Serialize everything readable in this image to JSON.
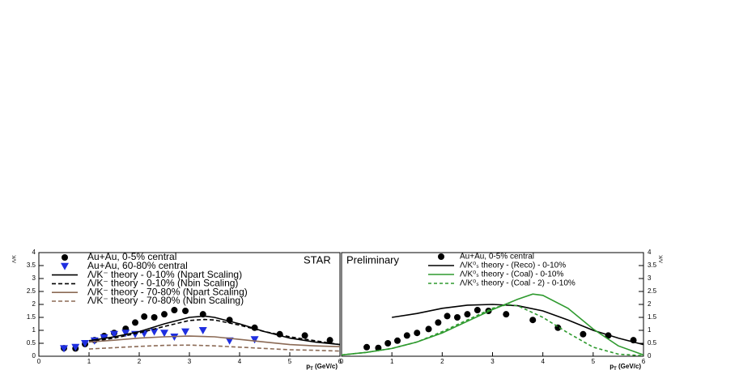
{
  "chart_data": [
    {
      "type": "scatter",
      "label": "STAR",
      "ylabel": "Λ/K",
      "xlabel": [
        "p",
        "T",
        " (GeV/c)"
      ],
      "xlim": [
        0,
        6
      ],
      "xticks": [
        0,
        1,
        2,
        3,
        4,
        5,
        6
      ],
      "ylim": [
        0,
        4
      ],
      "yticks": [
        0,
        0.5,
        1,
        1.5,
        2,
        2.5,
        3,
        3.5,
        4
      ],
      "ytick_side": "left",
      "series": [
        {
          "name": "Au+Au, 0-5% central",
          "mark": "circle",
          "color": "#000000",
          "x": [
            0.5,
            0.73,
            0.92,
            1.11,
            1.3,
            1.5,
            1.73,
            1.92,
            2.1,
            2.3,
            2.5,
            2.7,
            2.92,
            3.27,
            3.8,
            4.3,
            4.8,
            5.3,
            5.8
          ],
          "values": [
            0.31,
            0.3,
            0.47,
            0.62,
            0.78,
            0.9,
            1.06,
            1.3,
            1.53,
            1.5,
            1.62,
            1.78,
            1.75,
            1.62,
            1.4,
            1.1,
            0.85,
            0.8,
            0.62
          ]
        },
        {
          "name": "Au+Au, 60-80% central",
          "mark": "triangle",
          "color": "#1f2fe0",
          "x": [
            0.5,
            0.73,
            0.92,
            1.11,
            1.3,
            1.5,
            1.73,
            1.92,
            2.1,
            2.3,
            2.5,
            2.7,
            2.92,
            3.27,
            3.8,
            4.3
          ],
          "values": [
            0.3,
            0.35,
            0.5,
            0.6,
            0.72,
            0.85,
            0.9,
            0.85,
            0.88,
            0.95,
            0.9,
            0.75,
            0.95,
            1.0,
            0.6,
            0.65
          ]
        },
        {
          "name": "Λ/K⁻ theory - 0-10% (Npart Scaling)",
          "mark": "line",
          "dash": "none",
          "color": "#000000",
          "x": [
            1,
            1.5,
            2,
            2.5,
            3,
            3.3,
            3.5,
            4,
            4.5,
            5,
            5.5,
            6
          ],
          "values": [
            0.6,
            0.75,
            0.95,
            1.25,
            1.5,
            1.55,
            1.5,
            1.25,
            0.95,
            0.7,
            0.55,
            0.45
          ]
        },
        {
          "name": "Λ/K⁻ theory - 0-10% (Nbin Scaling)",
          "mark": "line",
          "dash": "5 3",
          "color": "#000000",
          "x": [
            1,
            1.5,
            2,
            2.5,
            3,
            3.3,
            3.5,
            4,
            4.5,
            5,
            5.5,
            6
          ],
          "values": [
            0.55,
            0.7,
            0.9,
            1.15,
            1.38,
            1.42,
            1.4,
            1.2,
            0.95,
            0.75,
            0.6,
            0.45
          ]
        },
        {
          "name": "Λ/K⁻ theory - 70-80% (Npart Scaling)",
          "mark": "line",
          "dash": "none",
          "color": "#8b6a55",
          "x": [
            1,
            1.5,
            2,
            2.5,
            3,
            3.5,
            4,
            4.5,
            5,
            5.5,
            6
          ],
          "values": [
            0.55,
            0.62,
            0.7,
            0.75,
            0.78,
            0.75,
            0.65,
            0.55,
            0.45,
            0.4,
            0.37
          ]
        },
        {
          "name": "Λ/K⁻ theory - 70-80% (Nbin Scaling)",
          "mark": "line",
          "dash": "5 3",
          "color": "#8b6a55",
          "x": [
            1,
            1.5,
            2,
            2.5,
            3,
            3.5,
            4,
            4.5,
            5,
            5.5,
            6
          ],
          "values": [
            0.28,
            0.33,
            0.38,
            0.42,
            0.43,
            0.4,
            0.35,
            0.3,
            0.25,
            0.23,
            0.2
          ]
        }
      ]
    },
    {
      "type": "scatter",
      "label": "Preliminary",
      "ylabel": "Λ/K",
      "xlabel": [
        "p",
        "T",
        " (GeV/c)"
      ],
      "xlim": [
        0,
        6
      ],
      "xticks": [
        0,
        1,
        2,
        3,
        4,
        5,
        6
      ],
      "ylim": [
        0,
        4
      ],
      "yticks": [
        0,
        0.5,
        1,
        1.5,
        2,
        2.5,
        3,
        3.5,
        4
      ],
      "ytick_side": "right",
      "series": [
        {
          "name": "Au+Au, 0-5% central",
          "mark": "circle",
          "color": "#000000",
          "x": [
            0.5,
            0.73,
            0.92,
            1.11,
            1.3,
            1.5,
            1.73,
            1.92,
            2.1,
            2.3,
            2.5,
            2.7,
            2.92,
            3.27,
            3.8,
            4.3,
            4.8,
            5.3,
            5.8
          ],
          "values": [
            0.35,
            0.32,
            0.5,
            0.6,
            0.8,
            0.9,
            1.05,
            1.3,
            1.55,
            1.5,
            1.62,
            1.78,
            1.75,
            1.62,
            1.4,
            1.1,
            0.85,
            0.8,
            0.62
          ]
        },
        {
          "name": "Λ/K⁰ₛ theory - (Reco) - 0-10%",
          "mark": "line",
          "dash": "none",
          "color": "#000000",
          "x": [
            1,
            1.5,
            2,
            2.5,
            3,
            3.5,
            4,
            4.5,
            5,
            5.5,
            6
          ],
          "values": [
            1.5,
            1.65,
            1.85,
            1.97,
            2.0,
            1.95,
            1.75,
            1.4,
            1.0,
            0.7,
            0.45
          ]
        },
        {
          "name": "Λ/K⁰ₛ theory - (Coal) - 0-10%",
          "mark": "line",
          "dash": "none",
          "color": "#2e9a2e",
          "x": [
            0,
            0.5,
            1,
            1.5,
            2,
            2.5,
            3,
            3.5,
            3.8,
            4,
            4.5,
            5,
            5.5,
            6
          ],
          "values": [
            0.05,
            0.15,
            0.3,
            0.55,
            0.9,
            1.35,
            1.8,
            2.2,
            2.4,
            2.35,
            1.85,
            1.05,
            0.4,
            0.05
          ]
        },
        {
          "name": "Λ/K⁰ₛ theory - (Coal - 2) - 0-10%",
          "mark": "line",
          "dash": "4 3",
          "color": "#2e9a2e",
          "x": [
            0,
            0.5,
            1,
            1.5,
            2,
            2.5,
            3,
            3.3,
            3.5,
            4,
            4.5,
            5,
            5.5,
            6
          ],
          "values": [
            0.05,
            0.15,
            0.3,
            0.55,
            0.95,
            1.4,
            1.85,
            2.0,
            1.95,
            1.5,
            0.9,
            0.35,
            0.08,
            0.02
          ]
        }
      ]
    }
  ]
}
